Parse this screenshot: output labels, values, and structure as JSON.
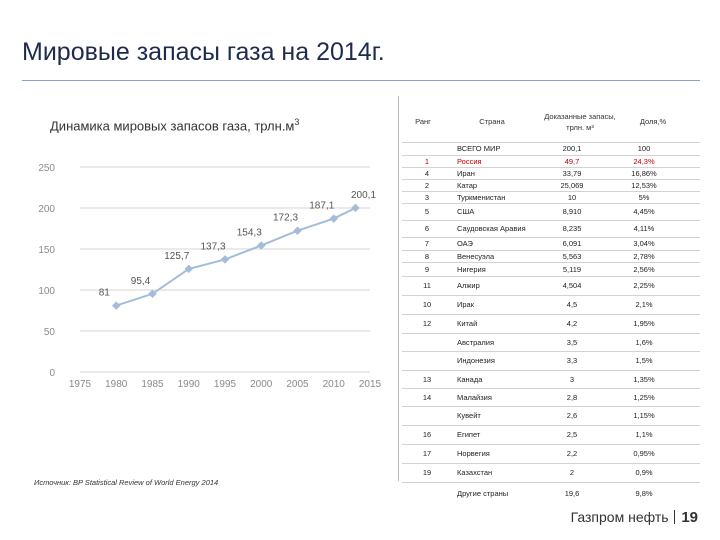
{
  "slide": {
    "title": "Мировые запасы газа на 2014г.",
    "chart_title": "Динамика мировых запасов газа, трлн.м",
    "chart_title_sup": "3",
    "source": "Источник: BP Statistical Review of World Energy 2014",
    "footer_brand": "Газпром нефть",
    "page_number": "19"
  },
  "colors": {
    "line": "#a3bdd9",
    "grid": "#d4d4d4",
    "axis_text": "#8a8a8a",
    "highlight": "#c00000"
  },
  "chart_data": {
    "type": "line",
    "title": "Динамика мировых запасов газа, трлн.м3",
    "xlabel": "",
    "ylabel": "",
    "x_ticks": [
      1975,
      1980,
      1985,
      1990,
      1995,
      2000,
      2005,
      2010,
      2015
    ],
    "y_ticks": [
      0,
      50,
      100,
      150,
      200,
      250
    ],
    "xlim": [
      1975,
      2015
    ],
    "ylim": [
      0,
      250
    ],
    "grid": true,
    "points": [
      {
        "x": 1980,
        "y": 81,
        "label": "81"
      },
      {
        "x": 1985,
        "y": 95.4,
        "label": "95,4"
      },
      {
        "x": 1990,
        "y": 125.7,
        "label": "125,7"
      },
      {
        "x": 1995,
        "y": 137.3,
        "label": "137,3"
      },
      {
        "x": 2000,
        "y": 154.3,
        "label": "154,3"
      },
      {
        "x": 2005,
        "y": 172.3,
        "label": "172,3"
      },
      {
        "x": 2010,
        "y": 187.1,
        "label": "187,1"
      },
      {
        "x": 2013,
        "y": 200.1,
        "label": "200,1"
      }
    ]
  },
  "table": {
    "headers": {
      "rank": "Ранг",
      "country": "Страна",
      "reserves_line1": "Доказанные запасы,",
      "reserves_line2": "трлн. м³",
      "share": "Доля,%"
    },
    "rows": [
      {
        "rank": "",
        "country": "ВСЕГО МИР",
        "reserves": "200,1",
        "share": "100"
      },
      {
        "rank": "1",
        "country": "Россия",
        "reserves": "49,7",
        "share": "24,3%",
        "highlight": true
      },
      {
        "rank": "4",
        "country": "Иран",
        "reserves": "33,79",
        "share": "16,86%"
      },
      {
        "rank": "2",
        "country": "Катар",
        "reserves": "25,069",
        "share": "12,53%"
      },
      {
        "rank": "3",
        "country": "Туркменистан",
        "reserves": "10",
        "share": "5%"
      },
      {
        "rank": "5",
        "country": "США",
        "reserves": "8,910",
        "share": "4,45%"
      },
      {
        "rank": "6",
        "country": "Саудовская Аравия",
        "reserves": "8,235",
        "share": "4,11%"
      },
      {
        "rank": "7",
        "country": "ОАЭ",
        "reserves": "6,091",
        "share": "3,04%"
      },
      {
        "rank": "8",
        "country": "Венесуэла",
        "reserves": "5,563",
        "share": "2,78%"
      },
      {
        "rank": "9",
        "country": "Нигерия",
        "reserves": "5,119",
        "share": "2,56%"
      },
      {
        "rank": "11",
        "country": "Алжир",
        "reserves": "4,504",
        "share": "2,25%"
      },
      {
        "rank": "10",
        "country": "Ирак",
        "reserves": "4,5",
        "share": "2,1%"
      },
      {
        "rank": "12",
        "country": "Китай",
        "reserves": "4,2",
        "share": "1,95%"
      },
      {
        "rank": "",
        "country": "Австралия",
        "reserves": "3,5",
        "share": "1,6%"
      },
      {
        "rank": "",
        "country": "Индонезия",
        "reserves": "3,3",
        "share": "1,5%"
      },
      {
        "rank": "13",
        "country": "Канада",
        "reserves": "3",
        "share": "1,35%"
      },
      {
        "rank": "14",
        "country": "Малайзия",
        "reserves": "2,8",
        "share": "1,25%"
      },
      {
        "rank": "",
        "country": "Кувейт",
        "reserves": "2,6",
        "share": "1,15%"
      },
      {
        "rank": "16",
        "country": "Египет",
        "reserves": "2,5",
        "share": "1,1%"
      },
      {
        "rank": "17",
        "country": "Норвегия",
        "reserves": "2,2",
        "share": "0,95%"
      },
      {
        "rank": "19",
        "country": "Казахстан",
        "reserves": "2",
        "share": "0,9%"
      },
      {
        "rank": "",
        "country": "Другие страны",
        "reserves": "19,6",
        "share": "9,8%"
      }
    ]
  }
}
